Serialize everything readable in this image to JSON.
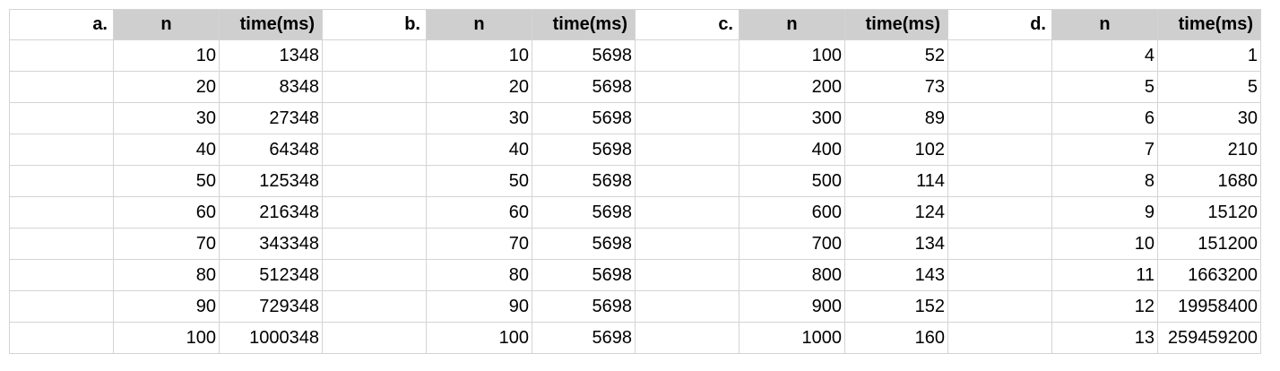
{
  "panels": [
    {
      "label": "a.",
      "headers": [
        "n",
        "time(ms)"
      ],
      "rows": [
        [
          "10",
          "1348"
        ],
        [
          "20",
          "8348"
        ],
        [
          "30",
          "27348"
        ],
        [
          "40",
          "64348"
        ],
        [
          "50",
          "125348"
        ],
        [
          "60",
          "216348"
        ],
        [
          "70",
          "343348"
        ],
        [
          "80",
          "512348"
        ],
        [
          "90",
          "729348"
        ],
        [
          "100",
          "1000348"
        ]
      ]
    },
    {
      "label": "b.",
      "headers": [
        "n",
        "time(ms)"
      ],
      "rows": [
        [
          "10",
          "5698"
        ],
        [
          "20",
          "5698"
        ],
        [
          "30",
          "5698"
        ],
        [
          "40",
          "5698"
        ],
        [
          "50",
          "5698"
        ],
        [
          "60",
          "5698"
        ],
        [
          "70",
          "5698"
        ],
        [
          "80",
          "5698"
        ],
        [
          "90",
          "5698"
        ],
        [
          "100",
          "5698"
        ]
      ]
    },
    {
      "label": "c.",
      "headers": [
        "n",
        "time(ms)"
      ],
      "rows": [
        [
          "100",
          "52"
        ],
        [
          "200",
          "73"
        ],
        [
          "300",
          "89"
        ],
        [
          "400",
          "102"
        ],
        [
          "500",
          "114"
        ],
        [
          "600",
          "124"
        ],
        [
          "700",
          "134"
        ],
        [
          "800",
          "143"
        ],
        [
          "900",
          "152"
        ],
        [
          "1000",
          "160"
        ]
      ]
    },
    {
      "label": "d.",
      "headers": [
        "n",
        "time(ms)"
      ],
      "rows": [
        [
          "4",
          "1"
        ],
        [
          "5",
          "5"
        ],
        [
          "6",
          "30"
        ],
        [
          "7",
          "210"
        ],
        [
          "8",
          "1680"
        ],
        [
          "9",
          "15120"
        ],
        [
          "10",
          "151200"
        ],
        [
          "11",
          "1663200"
        ],
        [
          "12",
          "19958400"
        ],
        [
          "13",
          "259459200"
        ]
      ]
    }
  ]
}
